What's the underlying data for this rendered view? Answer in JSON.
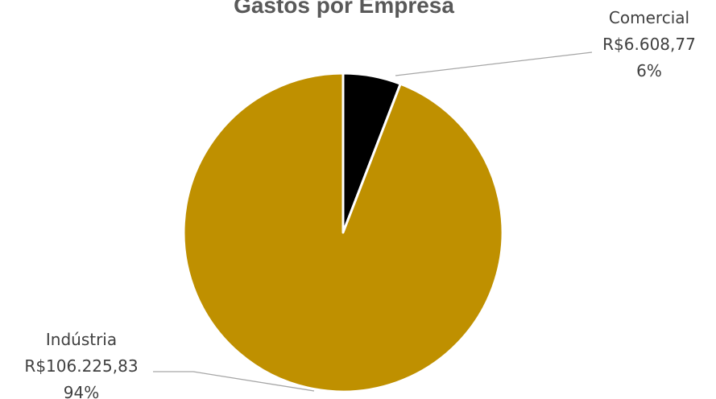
{
  "chart_data": {
    "type": "pie",
    "title": "Gastos por Empresa",
    "start_angle_deg": 0,
    "direction": "clockwise",
    "slices": [
      {
        "name": "Comercial",
        "value_label": "R$6.608,77",
        "value": 6608.77,
        "percent_label": "6%",
        "color": "#000000"
      },
      {
        "name": "Indústria",
        "value_label": "R$106.225,83",
        "value": 106225.83,
        "percent_label": "94%",
        "color": "#bf9000"
      }
    ],
    "slice_border_color": "#ffffff",
    "leader_color": "#a6a6a6"
  }
}
